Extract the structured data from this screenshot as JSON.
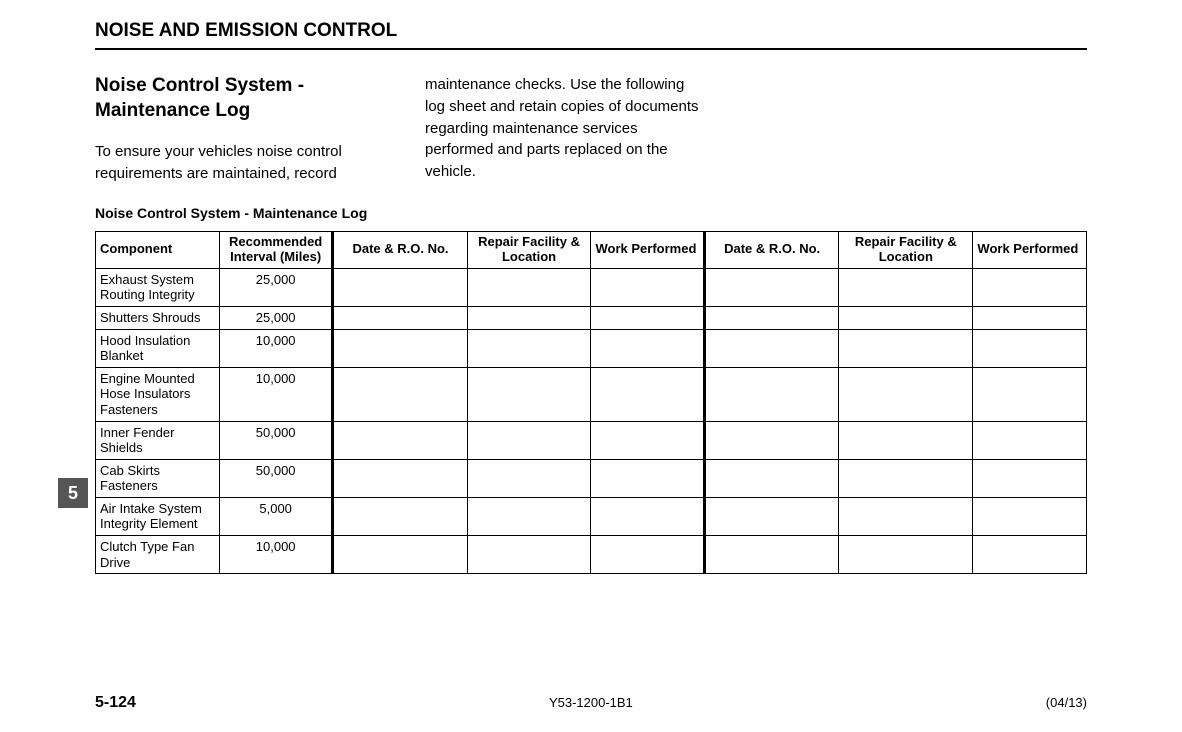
{
  "header": "NOISE AND EMISSION CONTROL",
  "section_title": "Noise Control System - Maintenance Log",
  "paragraph_col1": "To ensure your vehicles noise control requirements are maintained, record",
  "paragraph_col2": "maintenance checks.  Use the following log sheet and retain copies of documents regarding maintenance services performed and parts replaced on the vehicle.",
  "table_title": "Noise Control System - Maintenance Log",
  "side_tab": "5",
  "footer": {
    "page": "5-124",
    "doc_id": "Y53-1200-1B1",
    "date": "(04/13)"
  },
  "table": {
    "columns": [
      "Component",
      "Recommended Interval (Miles)",
      "Date & R.O. No.",
      "Repair Facility & Location",
      "Work Performed",
      "Date & R.O. No.",
      "Repair Facility & Location",
      "Work Performed"
    ],
    "rows": [
      {
        "component": "Exhaust System Routing Integrity",
        "interval": "25,000"
      },
      {
        "component": "Shutters Shrouds",
        "interval": "25,000"
      },
      {
        "component": "Hood Insulation Blanket",
        "interval": "10,000"
      },
      {
        "component": "Engine Mounted Hose Insulators Fasteners",
        "interval": "10,000"
      },
      {
        "component": "Inner Fender Shields",
        "interval": "50,000"
      },
      {
        "component": "Cab Skirts Fasteners",
        "interval": "50,000"
      },
      {
        "component": "Air Intake System Integrity Element",
        "interval": "5,000"
      },
      {
        "component": "Clutch Type Fan Drive",
        "interval": "10,000"
      }
    ]
  }
}
